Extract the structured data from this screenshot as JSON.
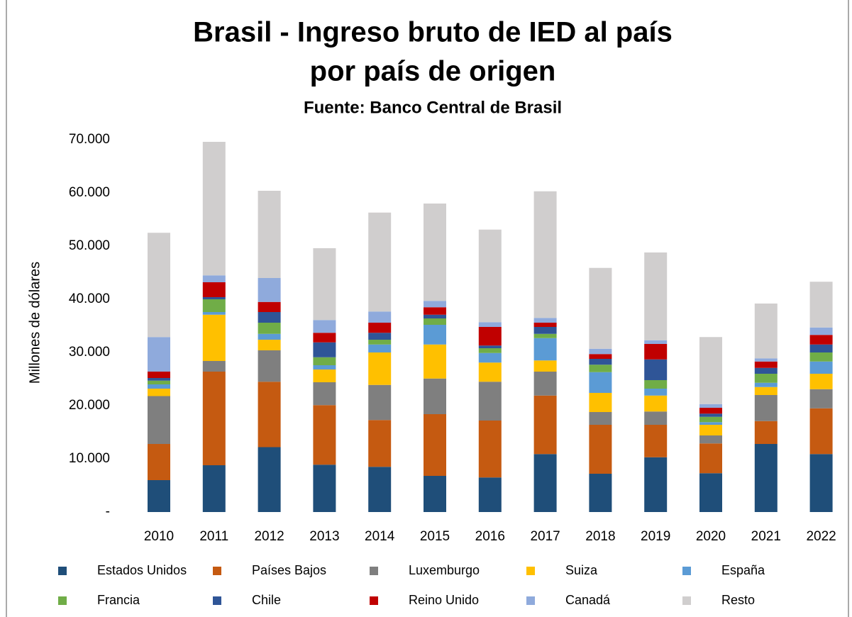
{
  "chart_data": {
    "type": "stacked_bar",
    "title": "Brasil - Ingreso bruto de IED al país",
    "title_line2": "por país de origen",
    "subtitle": "Fuente: Banco Central de Brasil",
    "y_label": "Millones de dólares",
    "categories": [
      "2010",
      "2011",
      "2012",
      "2013",
      "2014",
      "2015",
      "2016",
      "2017",
      "2018",
      "2019",
      "2020",
      "2021",
      "2022"
    ],
    "series": [
      {
        "name": "Estados Unidos",
        "color": "#1f4e79",
        "values": [
          6000,
          8800,
          12200,
          8900,
          8500,
          6800,
          6500,
          10900,
          7200,
          10300,
          7300,
          12800,
          10900
        ]
      },
      {
        "name": "Países Bajos",
        "color": "#c55a11",
        "values": [
          6800,
          17600,
          12300,
          11200,
          8800,
          11600,
          10700,
          11000,
          9200,
          6100,
          5600,
          4300,
          8600
        ]
      },
      {
        "name": "Luxemburgo",
        "color": "#7f7f7f",
        "values": [
          9000,
          2000,
          5900,
          4300,
          6600,
          6700,
          7300,
          4500,
          2400,
          2500,
          1500,
          4900,
          3600
        ]
      },
      {
        "name": "Suiza",
        "color": "#ffc000",
        "values": [
          1400,
          8700,
          2000,
          2400,
          6100,
          6400,
          3600,
          2100,
          3600,
          3000,
          2000,
          1500,
          2900
        ]
      },
      {
        "name": "España",
        "color": "#5b9bd5",
        "values": [
          800,
          500,
          1100,
          800,
          1500,
          3700,
          1800,
          4200,
          3900,
          1300,
          500,
          800,
          2300
        ]
      },
      {
        "name": "Francia",
        "color": "#70ad47",
        "values": [
          700,
          2400,
          2100,
          1500,
          900,
          1200,
          900,
          800,
          1400,
          1600,
          1000,
          1700,
          1700
        ]
      },
      {
        "name": "Chile",
        "color": "#2f5597",
        "values": [
          500,
          400,
          2000,
          2800,
          1300,
          700,
          500,
          1300,
          1100,
          3900,
          600,
          1100,
          1500
        ]
      },
      {
        "name": "Reino Unido",
        "color": "#c00000",
        "values": [
          1200,
          2800,
          1900,
          1800,
          1900,
          1400,
          3500,
          800,
          900,
          2900,
          1100,
          1200,
          1800
        ]
      },
      {
        "name": "Canadá",
        "color": "#8faadc",
        "values": [
          6500,
          1300,
          4500,
          2400,
          2100,
          1200,
          900,
          900,
          1000,
          700,
          700,
          600,
          1400
        ]
      },
      {
        "name": "Resto",
        "color": "#d0cece",
        "values": [
          19600,
          25100,
          16400,
          13500,
          18600,
          18300,
          17400,
          23800,
          15200,
          16500,
          12600,
          10300,
          8600
        ]
      }
    ],
    "ylim": [
      0,
      70000
    ],
    "yticks": [
      {
        "value": 0,
        "label": "-"
      },
      {
        "value": 10000,
        "label": "10.000"
      },
      {
        "value": 20000,
        "label": "20.000"
      },
      {
        "value": 30000,
        "label": "30.000"
      },
      {
        "value": 40000,
        "label": "40.000"
      },
      {
        "value": 50000,
        "label": "50.000"
      },
      {
        "value": 60000,
        "label": "60.000"
      },
      {
        "value": 70000,
        "label": "70.000"
      }
    ],
    "grid": false,
    "legend": "bottom"
  }
}
